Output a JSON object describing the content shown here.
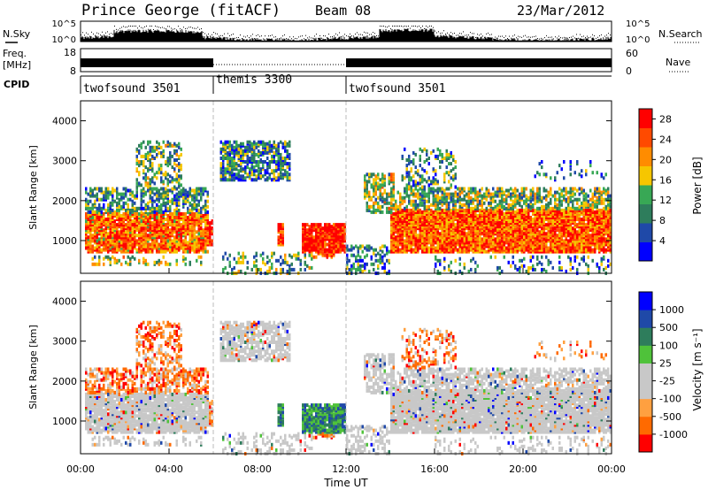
{
  "header": {
    "station": "Prince George (fitACF)",
    "beam": "Beam 08",
    "date": "23/Mar/2012"
  },
  "left_labels": {
    "nsky": "N.Sky",
    "freq": "Freq.",
    "freq_unit": "[MHz]",
    "cpid": "CPID"
  },
  "right_labels": {
    "nsearch": "N.Search",
    "nave": "Nave"
  },
  "cpid_segments": [
    {
      "label": "twofsound 3501",
      "start_h": 0,
      "end_h": 6
    },
    {
      "label": "themis 3300",
      "start_h": 6,
      "end_h": 12
    },
    {
      "label": "twofsound 3501",
      "start_h": 12,
      "end_h": 24
    }
  ],
  "colors": {
    "power_scale": [
      "#0000ff",
      "#1f49a8",
      "#2e7d5c",
      "#38a855",
      "#f6c600",
      "#ff8c00",
      "#ff4a00",
      "#ff0000"
    ],
    "velocity_scale": [
      "#ff0000",
      "#ff6a00",
      "#ffa040",
      "#c8c8c8",
      "#c8c8c8",
      "#4fc23a",
      "#2e7d5c",
      "#1f49a8",
      "#0000ff"
    ],
    "ground_scatter": "#c8c8c8"
  },
  "chart_data": [
    {
      "type": "line",
      "name": "noise",
      "y_ticks_left": [
        "10^5",
        "10^0"
      ],
      "y_ticks_right": [
        "10^5",
        "10^0"
      ],
      "x_range_h": [
        0,
        24
      ]
    },
    {
      "type": "line",
      "name": "freq-nave",
      "y_ticks_left": [
        "18",
        "8"
      ],
      "y_ticks_right": [
        "60",
        "0"
      ],
      "x_range_h": [
        0,
        24
      ]
    },
    {
      "type": "heatmap",
      "name": "power",
      "ylabel": "Slant Range [km]",
      "ylim": [
        180,
        4500
      ],
      "y_ticks": [
        1000,
        2000,
        3000,
        4000
      ],
      "y_tick_labels": [
        "1000",
        "2000",
        "3000",
        "4000"
      ],
      "colorbar_label": "Power [dB]",
      "colorbar_ticks": [
        "4",
        "8",
        "12",
        "16",
        "20",
        "24",
        "28"
      ],
      "colorbar_range": [
        0,
        30
      ]
    },
    {
      "type": "heatmap",
      "name": "velocity",
      "ylabel": "Slant Range [km]",
      "ylim": [
        180,
        4500
      ],
      "y_ticks": [
        1000,
        2000,
        3000,
        4000
      ],
      "y_tick_labels": [
        "1000",
        "2000",
        "3000",
        "4000"
      ],
      "colorbar_label": "Velocity [m s⁻¹]",
      "colorbar_ticks": [
        "1000",
        "500",
        "100",
        "25",
        "-25",
        "-100",
        "-500",
        "-1000"
      ]
    }
  ],
  "x_axis": {
    "label": "Time UT",
    "ticks_h": [
      0,
      4,
      8,
      12,
      16,
      20,
      24
    ],
    "tick_labels": [
      "00:00",
      "04:00",
      "08:00",
      "12:00",
      "16:00",
      "20:00",
      "00:00"
    ]
  }
}
